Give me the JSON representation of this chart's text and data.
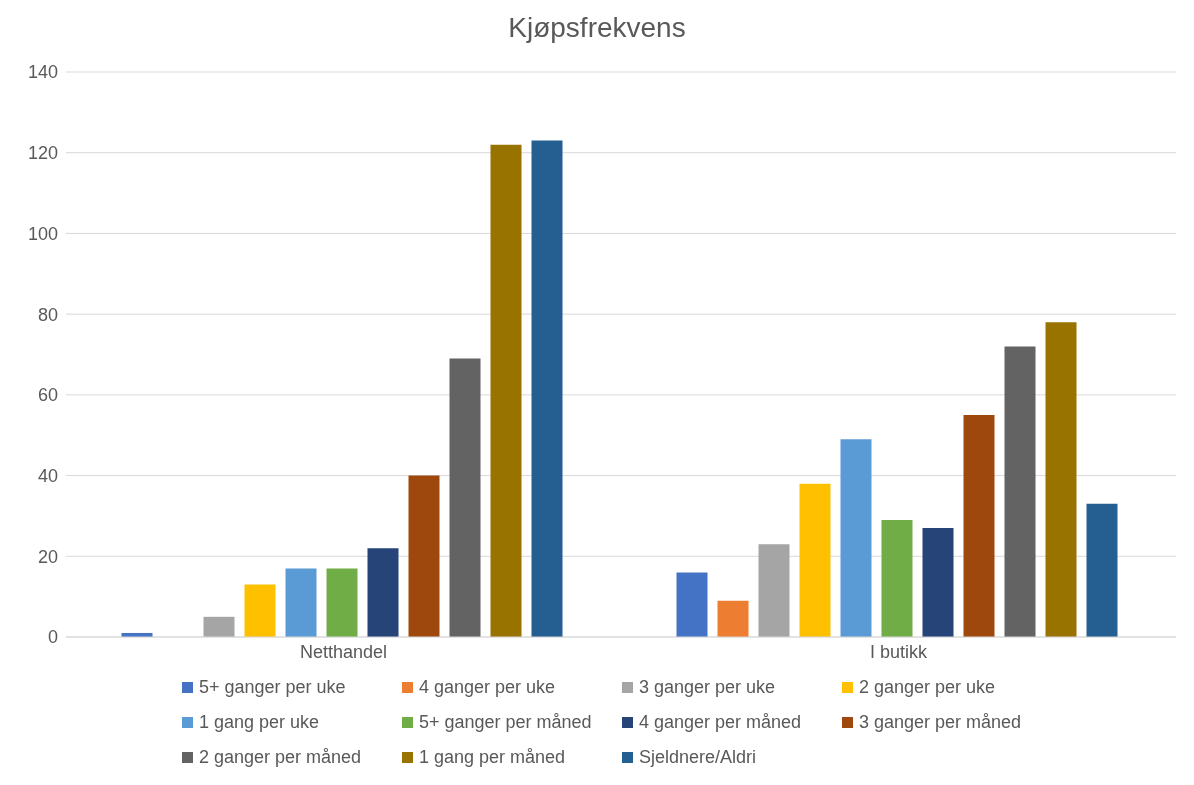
{
  "chart_data": {
    "type": "bar",
    "title": "Kjøpsfrekvens",
    "categories": [
      "Netthandel",
      "I butikk"
    ],
    "series": [
      {
        "name": "5+ ganger per uke",
        "color": "#4472c4",
        "values": [
          1,
          16
        ]
      },
      {
        "name": "4 ganger per uke",
        "color": "#ed7d31",
        "values": [
          0,
          9
        ]
      },
      {
        "name": "3 ganger per uke",
        "color": "#a5a5a5",
        "values": [
          5,
          23
        ]
      },
      {
        "name": "2 ganger per uke",
        "color": "#ffc000",
        "values": [
          13,
          38
        ]
      },
      {
        "name": "1 gang per uke",
        "color": "#5b9bd5",
        "values": [
          17,
          49
        ]
      },
      {
        "name": "5+ ganger per måned",
        "color": "#70ad47",
        "values": [
          17,
          29
        ]
      },
      {
        "name": "4 ganger per måned",
        "color": "#264478",
        "values": [
          22,
          27
        ]
      },
      {
        "name": "3 ganger per måned",
        "color": "#9e480e",
        "values": [
          40,
          55
        ]
      },
      {
        "name": "2 ganger per måned",
        "color": "#636363",
        "values": [
          69,
          72
        ]
      },
      {
        "name": "1 gang per måned",
        "color": "#997300",
        "values": [
          122,
          78
        ]
      },
      {
        "name": "Sjeldnere/Aldri",
        "color": "#255e91",
        "values": [
          123,
          33
        ]
      }
    ],
    "ylim": [
      0,
      140
    ],
    "yticks": [
      0,
      20,
      40,
      60,
      80,
      100,
      120,
      140
    ],
    "grid": "y",
    "legend": "bottom"
  }
}
